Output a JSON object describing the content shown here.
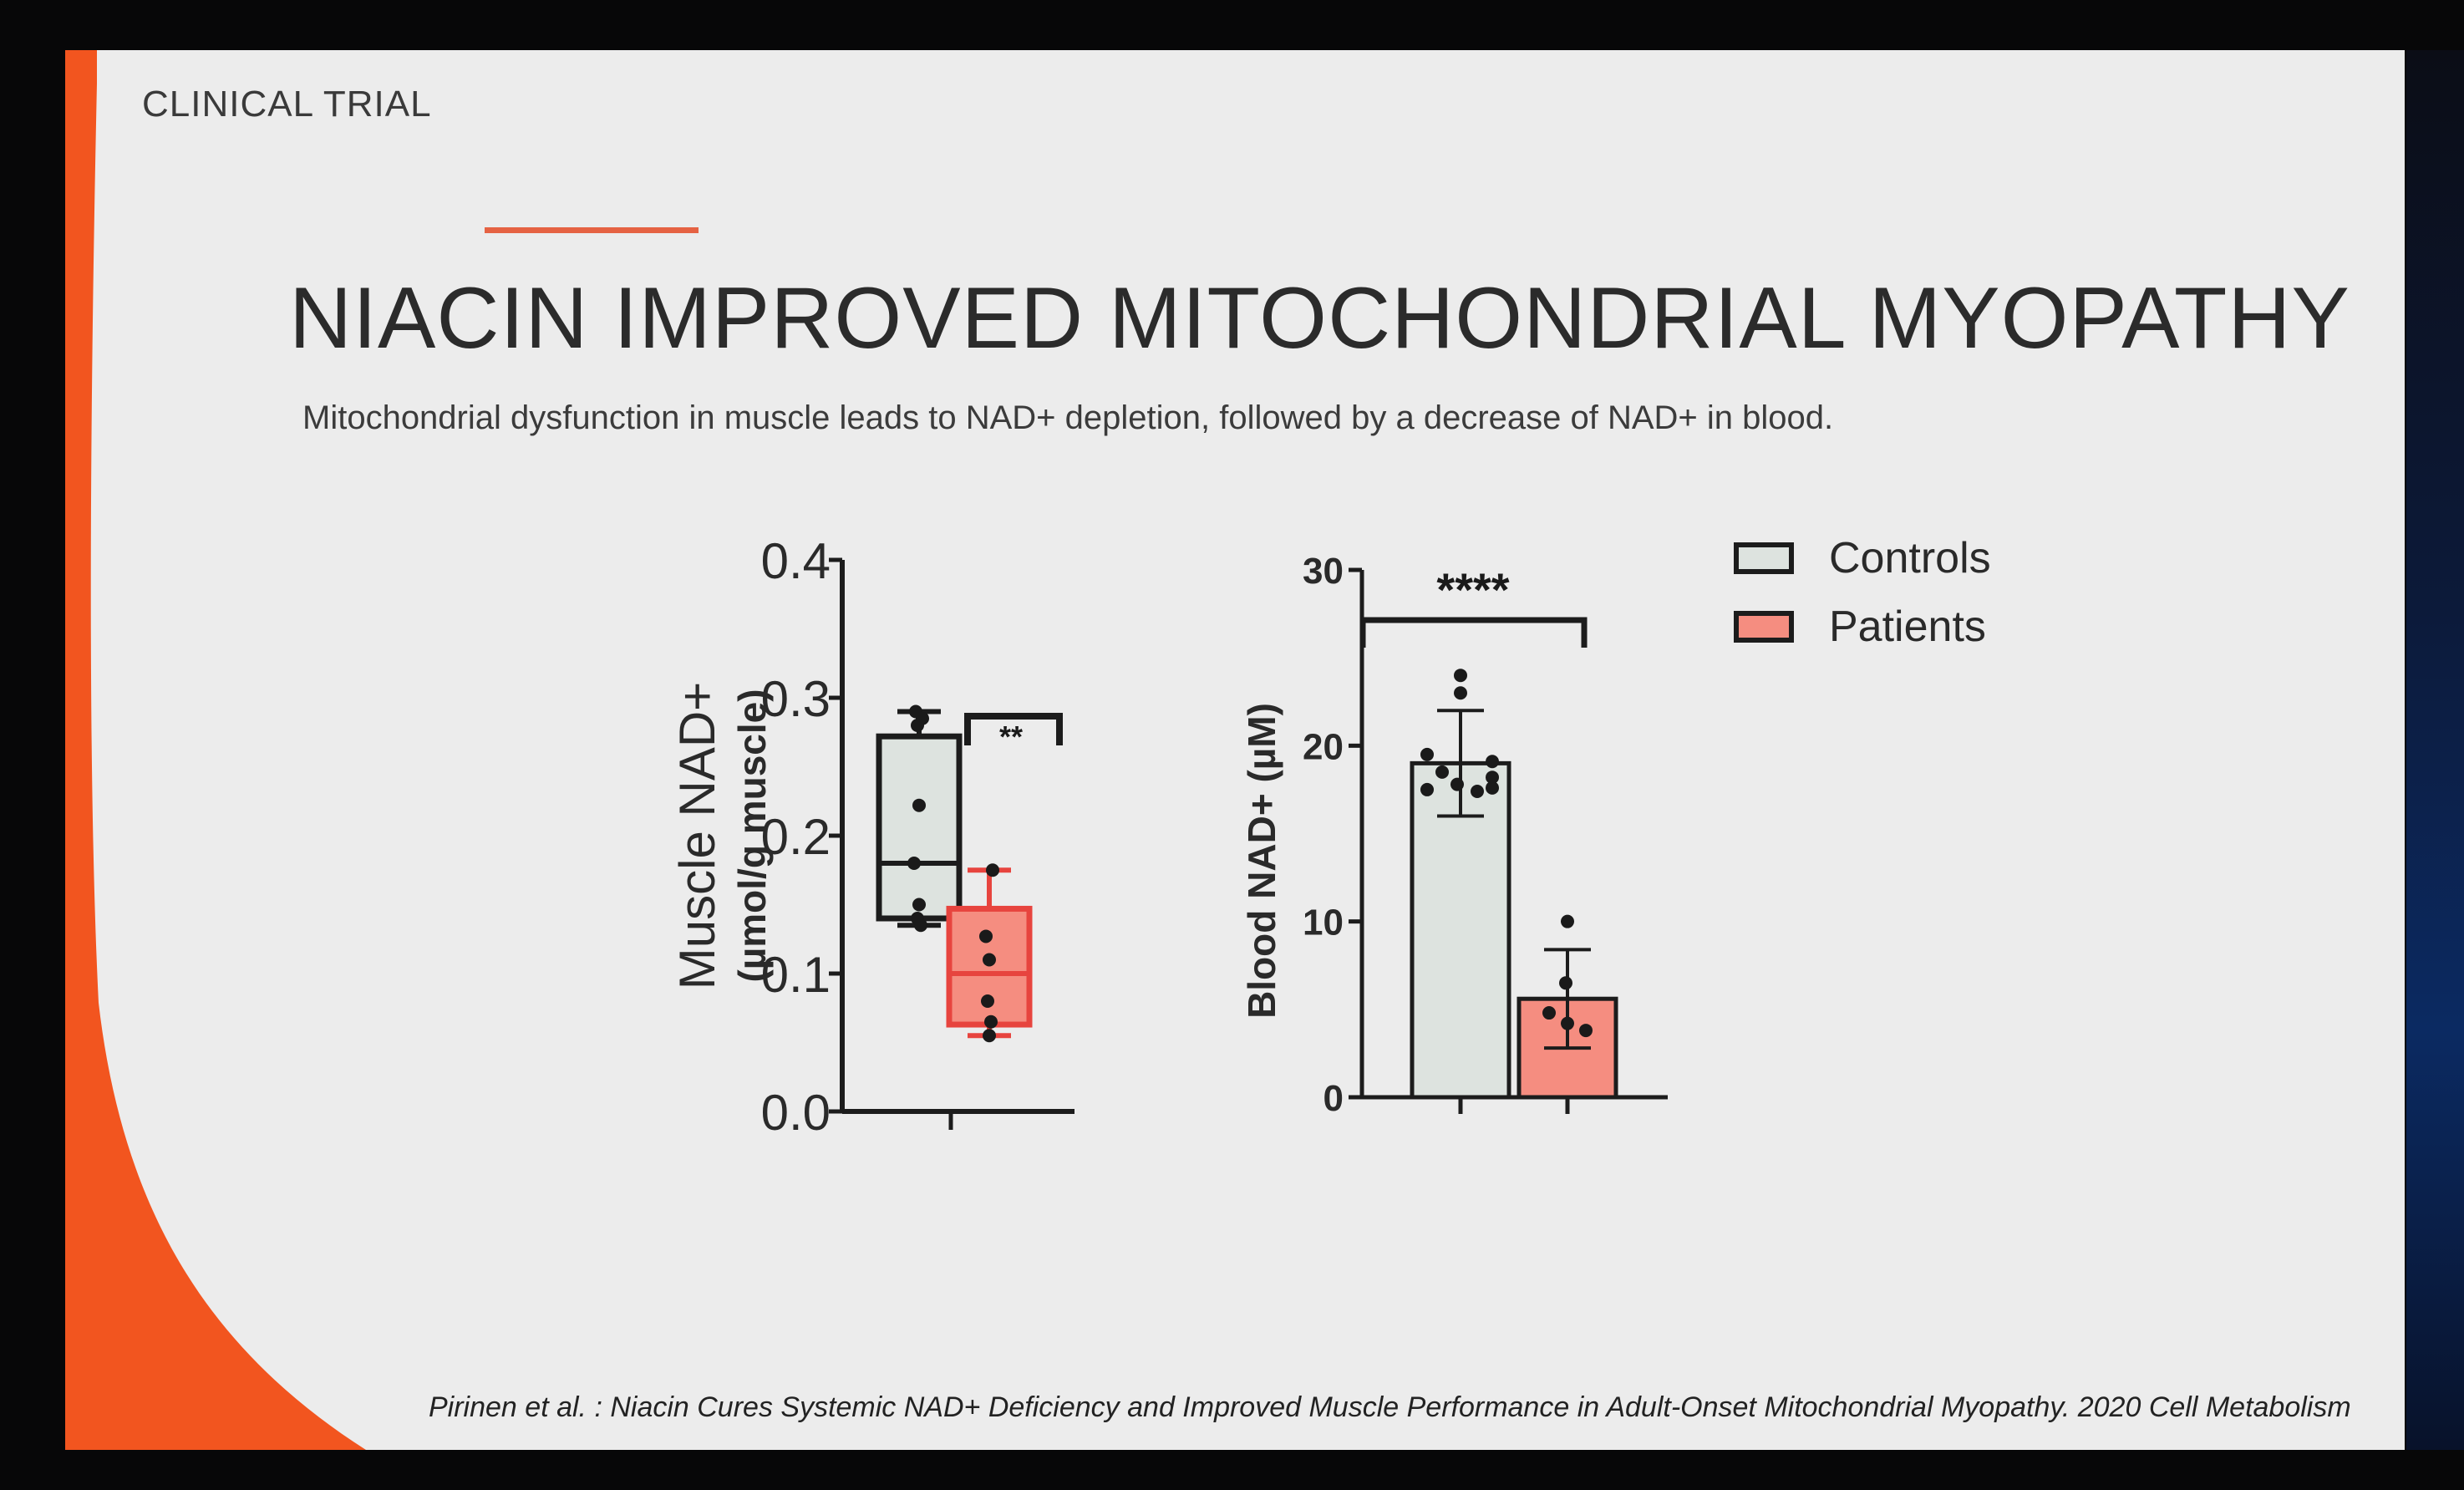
{
  "slide": {
    "section_label": "CLINICAL TRIAL",
    "title": "NIACIN IMPROVED MITOCHONDRIAL MYOPATHY",
    "subtitle": "Mitochondrial dysfunction in muscle leads to NAD+ depletion, followed by a decrease of NAD+ in blood.",
    "citation": "Pirinen et al. : Niacin Cures Systemic NAD+ Deficiency and Improved Muscle Performance in Adult-Onset Mitochondrial Myopathy. 2020 Cell Metabolism"
  },
  "colors": {
    "accent": "#e56243",
    "controls_fill": "#dde3df",
    "patients_fill": "#f58d80",
    "patients_stroke": "#e7443e",
    "axis": "#1c1c1c"
  },
  "legend": {
    "items": [
      {
        "label": "Controls",
        "color": "#dde3df"
      },
      {
        "label": "Patients",
        "color": "#f58d80"
      }
    ]
  },
  "chart_data": [
    {
      "type": "box",
      "ylabel_line1": "Muscle NAD+",
      "ylabel_line2": "(µmol/g muscle)",
      "ylim": [
        0,
        0.4
      ],
      "yticks": [
        "0.0",
        "0.1",
        "0.2",
        "0.3",
        "0.4"
      ],
      "significance": "**",
      "groups": [
        {
          "name": "Controls",
          "min": 0.135,
          "q1": 0.14,
          "median": 0.18,
          "q3": 0.272,
          "max": 0.29,
          "points": [
            0.29,
            0.285,
            0.28,
            0.222,
            0.18,
            0.15,
            0.14,
            0.135
          ]
        },
        {
          "name": "Patients",
          "min": 0.055,
          "q1": 0.063,
          "median": 0.1,
          "q3": 0.147,
          "max": 0.175,
          "points": [
            0.175,
            0.127,
            0.11,
            0.08,
            0.065,
            0.055
          ]
        }
      ]
    },
    {
      "type": "bar",
      "ylabel": "Blood NAD+ (µM)",
      "ylim": [
        0,
        30
      ],
      "yticks": [
        "0",
        "10",
        "20",
        "30"
      ],
      "significance": "****",
      "groups": [
        {
          "name": "Controls",
          "mean": 19,
          "sd": 3,
          "points": [
            24,
            23,
            19.5,
            18.5,
            17.5,
            17.8,
            17.4,
            17.6,
            18.2,
            19.1
          ]
        },
        {
          "name": "Patients",
          "mean": 5.6,
          "sd": 2.8,
          "points": [
            10,
            6.5,
            4.8,
            4.2,
            3.8
          ]
        }
      ]
    }
  ]
}
